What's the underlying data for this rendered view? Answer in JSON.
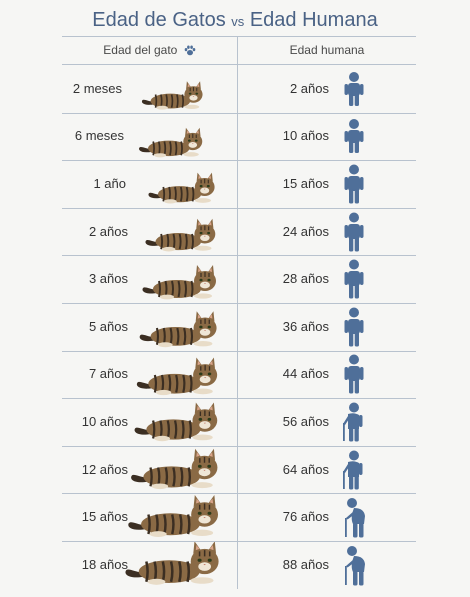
{
  "title": {
    "part1": "Edad de Gatos",
    "vs": "vs",
    "part2": "Edad Humana"
  },
  "header": {
    "cat_label": "Edad del gato",
    "human_label": "Edad humana",
    "paw_icon": "paw-icon"
  },
  "rows": [
    {
      "cat_age": "2 meses",
      "human_age": "2 años",
      "human_figure": "child"
    },
    {
      "cat_age": "6 meses",
      "human_age": "10 años",
      "human_figure": "child"
    },
    {
      "cat_age": "1 año",
      "human_age": "15 años",
      "human_figure": "adult"
    },
    {
      "cat_age": "2 años",
      "human_age": "24 años",
      "human_figure": "adult"
    },
    {
      "cat_age": "3 años",
      "human_age": "28 años",
      "human_figure": "adult"
    },
    {
      "cat_age": "5 años",
      "human_age": "36 años",
      "human_figure": "adult"
    },
    {
      "cat_age": "7 años",
      "human_age": "44 años",
      "human_figure": "adult"
    },
    {
      "cat_age": "10 años",
      "human_age": "56 años",
      "human_figure": "senior"
    },
    {
      "cat_age": "12 años",
      "human_age": "64 años",
      "human_figure": "senior"
    },
    {
      "cat_age": "15 años",
      "human_age": "76 años",
      "human_figure": "elderly"
    },
    {
      "cat_age": "18 años",
      "human_age": "88 años",
      "human_figure": "elderly"
    }
  ],
  "colors": {
    "title": "#4a6285",
    "figure": "#4f6f99",
    "divider": "#b8c2ce",
    "cat_fur": "#8a6a45",
    "cat_stripes": "#3b2e22"
  }
}
